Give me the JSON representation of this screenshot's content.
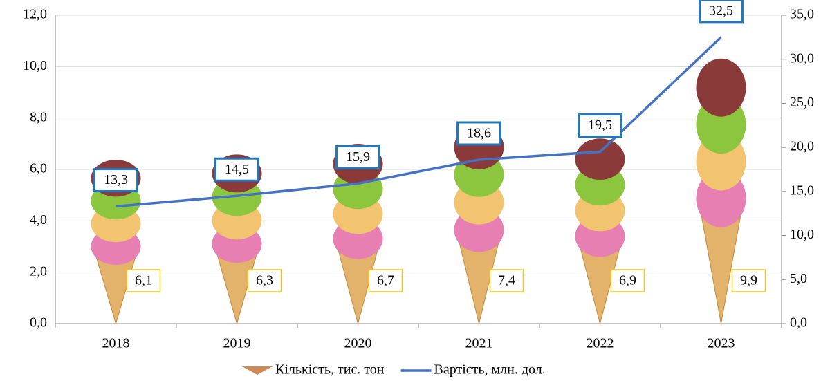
{
  "chart_data": {
    "type": "bar-line",
    "categories": [
      "2018",
      "2019",
      "2020",
      "2021",
      "2022",
      "2023"
    ],
    "series": [
      {
        "name": "Кількість, тис. тон",
        "type": "bar",
        "axis": "y",
        "color": "#e8a0c0",
        "values": [
          6.1,
          6.3,
          6.7,
          7.4,
          6.9,
          9.9
        ],
        "value_labels": [
          "6,1",
          "6,3",
          "6,7",
          "7,4",
          "6,9",
          "9,9"
        ]
      },
      {
        "name": "Вартість, млн. дол.",
        "type": "line",
        "axis": "y2",
        "color": "#4472c4",
        "values": [
          13.3,
          14.5,
          15.9,
          18.6,
          19.5,
          32.5
        ],
        "value_labels": [
          "13,3",
          "14,5",
          "15,9",
          "18,6",
          "19,5",
          "32,5"
        ]
      }
    ],
    "ylim": [
      0,
      12
    ],
    "yticks": [
      {
        "value": 0,
        "label": "0,0"
      },
      {
        "value": 2,
        "label": "2,0"
      },
      {
        "value": 4,
        "label": "4,0"
      },
      {
        "value": 6,
        "label": "6,0"
      },
      {
        "value": 8,
        "label": "8,0"
      },
      {
        "value": 10,
        "label": "10,0"
      },
      {
        "value": 12,
        "label": "12,0"
      }
    ],
    "y2lim": [
      0,
      35
    ],
    "y2ticks": [
      {
        "value": 0,
        "label": "0,0"
      },
      {
        "value": 5,
        "label": "5,0"
      },
      {
        "value": 10,
        "label": "10,0"
      },
      {
        "value": 15,
        "label": "15,0"
      },
      {
        "value": 20,
        "label": "20,0"
      },
      {
        "value": 25,
        "label": "25,0"
      },
      {
        "value": 30,
        "label": "30,0"
      },
      {
        "value": 35,
        "label": "35,0"
      }
    ],
    "grid": true,
    "legend": "bottom"
  }
}
